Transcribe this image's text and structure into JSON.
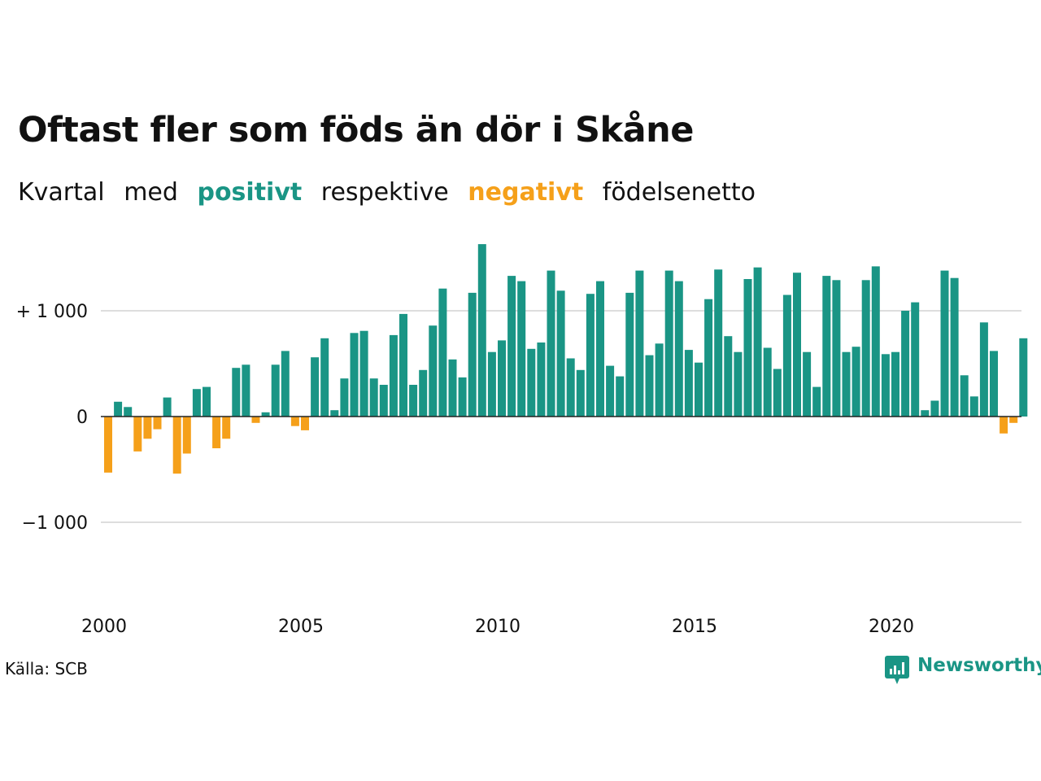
{
  "title": "Oftast fler som föds än dör i Skåne",
  "subtitle": {
    "part1": "Kvartal",
    "part2": "med",
    "positive_word": "positivt",
    "part3": "respektive",
    "negative_word": "negativt",
    "part4": "födelsenetto"
  },
  "colors": {
    "positive": "#1a9585",
    "negative": "#f5a01a",
    "gridline": "#dddddd",
    "zeroline": "#222222"
  },
  "source": "Källa: SCB",
  "logo": {
    "text": "Newsworthy",
    "icon": "newsworthy-logo-icon"
  },
  "chart_data": {
    "type": "bar",
    "x_start": "2000 Q1",
    "xlabel": "",
    "ylabel": "",
    "ylim": [
      -1700,
      1700
    ],
    "y_ticks": [
      1000,
      0,
      -1000
    ],
    "y_tick_labels": [
      "+ 1 000",
      "0",
      "−1 000"
    ],
    "x_ticks": [
      2000,
      2005,
      2010,
      2015,
      2020
    ],
    "x_tick_labels": [
      "2000",
      "2005",
      "2010",
      "2015",
      "2020"
    ],
    "grid": true,
    "legend": "none",
    "values": [
      -530,
      140,
      90,
      -330,
      -210,
      -120,
      180,
      -540,
      -350,
      260,
      280,
      -300,
      -210,
      460,
      490,
      -60,
      40,
      490,
      620,
      -90,
      -130,
      560,
      740,
      60,
      360,
      790,
      810,
      360,
      300,
      770,
      970,
      300,
      440,
      860,
      1210,
      540,
      370,
      1170,
      1630,
      610,
      720,
      1330,
      1280,
      640,
      700,
      1380,
      1190,
      550,
      440,
      1160,
      1280,
      480,
      380,
      1170,
      1380,
      580,
      690,
      1380,
      1280,
      630,
      510,
      1110,
      1390,
      760,
      610,
      1300,
      1410,
      650,
      450,
      1150,
      1360,
      610,
      280,
      1330,
      1290,
      610,
      660,
      1290,
      1420,
      590,
      610,
      1000,
      1080,
      60,
      150,
      1380,
      1310,
      390,
      190,
      890,
      620,
      -160,
      -60,
      740
    ]
  }
}
